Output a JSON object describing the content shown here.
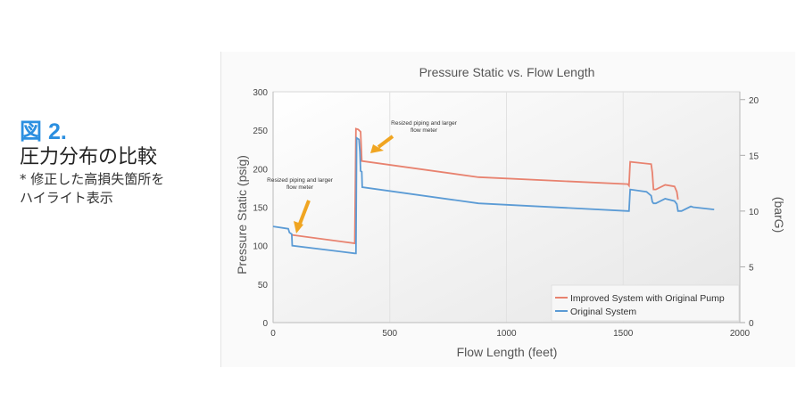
{
  "caption": {
    "figure": "図 2.",
    "title": "圧力分布の比較",
    "note_line1": "* 修正した高損失箇所を",
    "note_line2": "ハイライト表示"
  },
  "chart_data": {
    "type": "line",
    "title": "Pressure Static vs. Flow Length",
    "xlabel": "Flow Length (feet)",
    "ylabel": "Pressure Static (psig)",
    "y2label": "(barG)",
    "xlim": [
      0,
      2000
    ],
    "ylim": [
      0,
      300
    ],
    "y2lim": [
      0,
      20.7
    ],
    "xticks": [
      "0",
      "500",
      "1000",
      "1500",
      "2000"
    ],
    "yticks": [
      "0",
      "50",
      "100",
      "150",
      "200",
      "250",
      "300"
    ],
    "y2ticks": [
      "0",
      "5",
      "10",
      "15",
      "20"
    ],
    "grid": true,
    "legend_position": "bottom-right",
    "annotations": [
      {
        "line1": "Resized piping and larger",
        "line2": "flow meter",
        "x": 80,
        "y": 114
      },
      {
        "line1": "Resized piping and larger",
        "line2": "flow meter",
        "x": 380,
        "y": 215
      }
    ],
    "series": [
      {
        "name": "Improved System with Original Pump",
        "color": "#e8826f",
        "x": [
          80,
          350,
          355,
          365,
          375,
          380,
          880,
          1520,
          1525,
          1530,
          1620,
          1625,
          1630,
          1640,
          1680,
          1720,
          1730,
          1735
        ],
        "y": [
          114,
          103,
          252,
          251,
          248,
          210,
          189,
          180,
          178,
          209,
          206,
          195,
          173,
          173,
          179,
          177,
          170,
          160
        ]
      },
      {
        "name": "Original System",
        "color": "#5b9bd5",
        "x": [
          0,
          65,
          70,
          80,
          82,
          350,
          355,
          358,
          368,
          372,
          375,
          380,
          382,
          880,
          1520,
          1525,
          1530,
          1600,
          1620,
          1625,
          1630,
          1640,
          1680,
          1720,
          1730,
          1735,
          1750,
          1790,
          1800,
          1890
        ],
        "y": [
          125,
          122,
          117,
          115,
          100,
          90,
          90,
          240,
          238,
          222,
          197,
          196,
          176,
          155,
          145,
          145,
          173,
          170,
          165,
          157,
          155,
          155,
          161,
          158,
          154,
          145,
          145,
          151,
          150,
          147
        ]
      }
    ]
  }
}
